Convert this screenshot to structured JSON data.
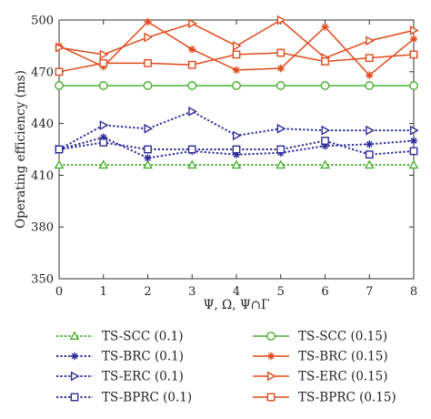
{
  "chart_data": {
    "type": "line",
    "xlabel": "Ψ, Ω, Ψ∩Γ",
    "ylabel": "Operating efficiency (ms)",
    "xlim": [
      0,
      8
    ],
    "ylim": [
      350,
      500
    ],
    "x": [
      0,
      1,
      2,
      3,
      4,
      5,
      6,
      7,
      8
    ],
    "xticks": [
      "0",
      "1",
      "2",
      "3",
      "4",
      "5",
      "6",
      "7",
      "8"
    ],
    "yticks": [
      "350",
      "380",
      "410",
      "440",
      "470",
      "500"
    ],
    "grid": false,
    "legend_position": "bottom",
    "series": [
      {
        "name": "TS-SCC (0.1)",
        "color": "#4caf32",
        "marker": "triangle-up",
        "dash": "dotted",
        "values": [
          416,
          416,
          416,
          416,
          416,
          416,
          416,
          416,
          416
        ]
      },
      {
        "name": "TS-SCC (0.15)",
        "color": "#4caf32",
        "marker": "circle",
        "dash": "solid",
        "values": [
          462,
          462,
          462,
          462,
          462,
          462,
          462,
          462,
          462
        ]
      },
      {
        "name": "TS-BRC (0.1)",
        "color": "#2d2d9a",
        "marker": "star",
        "dash": "dotted",
        "values": [
          425,
          432,
          420,
          424,
          422,
          423,
          427,
          428,
          430
        ]
      },
      {
        "name": "TS-BRC (0.15)",
        "color": "#e04a1c",
        "marker": "star",
        "dash": "solid",
        "values": [
          485,
          473,
          499,
          483,
          471,
          472,
          496,
          468,
          489
        ]
      },
      {
        "name": "TS-ERC (0.1)",
        "color": "#2d2d9a",
        "marker": "triangle-right",
        "dash": "dotted",
        "values": [
          425,
          439,
          437,
          447,
          433,
          437,
          436,
          436,
          436
        ]
      },
      {
        "name": "TS-ERC (0.15)",
        "color": "#e04a1c",
        "marker": "triangle-right",
        "dash": "solid",
        "values": [
          484,
          480,
          490,
          498,
          485,
          500,
          478,
          488,
          494
        ]
      },
      {
        "name": "TS-BPRC (0.1)",
        "color": "#2d2d9a",
        "marker": "square",
        "dash": "dotted",
        "values": [
          425,
          429,
          425,
          425,
          425,
          425,
          430,
          422,
          424
        ]
      },
      {
        "name": "TS-BPRC (0.15)",
        "color": "#e04a1c",
        "marker": "square",
        "dash": "solid",
        "values": [
          470,
          475,
          475,
          474,
          480,
          481,
          476,
          478,
          480
        ]
      }
    ]
  }
}
